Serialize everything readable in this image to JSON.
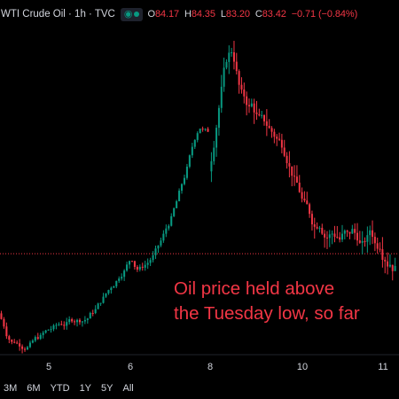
{
  "legend": {
    "symbol": "WTI Crude Oil · 1h · TVC",
    "open_label": "O",
    "open": "84.17",
    "high_label": "H",
    "high": "84.35",
    "low_label": "L",
    "low": "83.20",
    "close_label": "C",
    "close": "83.42",
    "change": "−0.71 (−0.84%)",
    "icons": [
      "eye-icon",
      "dot-icon"
    ]
  },
  "annotation": {
    "line1": "Oil price held above",
    "line2": "the Tuesday low, so far"
  },
  "timeframes": [
    "3M",
    "6M",
    "YTD",
    "1Y",
    "5Y",
    "All"
  ],
  "colors": {
    "up": "#089981",
    "down": "#f23645",
    "background": "#000000",
    "text": "#d1d4dc"
  },
  "chart_data": {
    "type": "candlestick",
    "title": "WTI Crude Oil · 1h · TVC",
    "x_ticks": [
      "5",
      "6",
      "8",
      "10",
      "11"
    ],
    "ylim": [
      79.9,
      85.6
    ],
    "current_price": 81.6,
    "grid": false,
    "series": [
      {
        "segments": [
          {
            "start": 80.55,
            "trend": [
              -0.1,
              -0.1,
              -0.12,
              -0.05,
              -0.06,
              0.02,
              -0.02,
              0.0,
              0.0,
              0.03,
              0.02,
              0.02,
              0.03,
              0.03,
              0.02,
              0.02,
              0.03,
              0.02,
              0.02,
              0.02,
              0.01,
              0.01,
              0.02,
              0.02,
              0.01,
              0.01,
              0.02,
              0.02,
              0.02,
              0.01,
              0.02,
              0.02,
              0.03,
              0.03,
              0.05,
              0.04,
              0.05,
              0.06,
              0.06,
              0.07,
              0.06,
              0.06,
              0.07,
              0.07,
              0.08,
              0.09,
              0.09,
              0.08,
              0.08,
              0.08,
              0.05,
              -0.08,
              -0.04,
              0.0,
              0.03,
              0.05,
              0.04,
              0.06,
              0.05,
              0.06,
              0.06,
              0.08,
              0.09,
              0.1,
              0.1,
              0.11,
              0.12,
              0.12,
              0.13,
              0.13,
              0.14,
              0.15,
              0.16,
              0.16,
              0.17,
              0.15,
              0.1,
              -0.04,
              -0.04,
              -0.02
            ]
          },
          {
            "start": 83.05,
            "trend": [
              0.25,
              0.33,
              0.38,
              0.35,
              0.3,
              0.25,
              0.18,
              0.12,
              0.05,
              -0.1,
              -0.22,
              -0.26,
              -0.17,
              -0.09,
              -0.08,
              -0.07,
              0.03,
              -0.09,
              -0.08,
              -0.09,
              -0.07,
              -0.06,
              -0.05,
              -0.06,
              -0.06,
              -0.05,
              -0.05,
              -0.05,
              -0.04,
              -0.05,
              -0.05,
              -0.09,
              -0.1,
              -0.11,
              -0.12,
              -0.13,
              -0.14,
              -0.12,
              -0.1,
              -0.12,
              -0.1,
              -0.05,
              0.05,
              0.08,
              -0.03,
              -0.05,
              0.0,
              0.03,
              0.02,
              -0.01,
              0.0,
              -0.04,
              0.05,
              0.01,
              -0.07,
              0.01,
              0.04,
              -0.07,
              -0.04,
              -0.08,
              -0.06,
              0.04,
              0.04,
              0.1,
              -0.05,
              -0.13,
              -0.02,
              0.07,
              -0.09,
              0.02,
              -0.04,
              0.05,
              -0.04,
              0.02
            ]
          }
        ]
      }
    ]
  }
}
